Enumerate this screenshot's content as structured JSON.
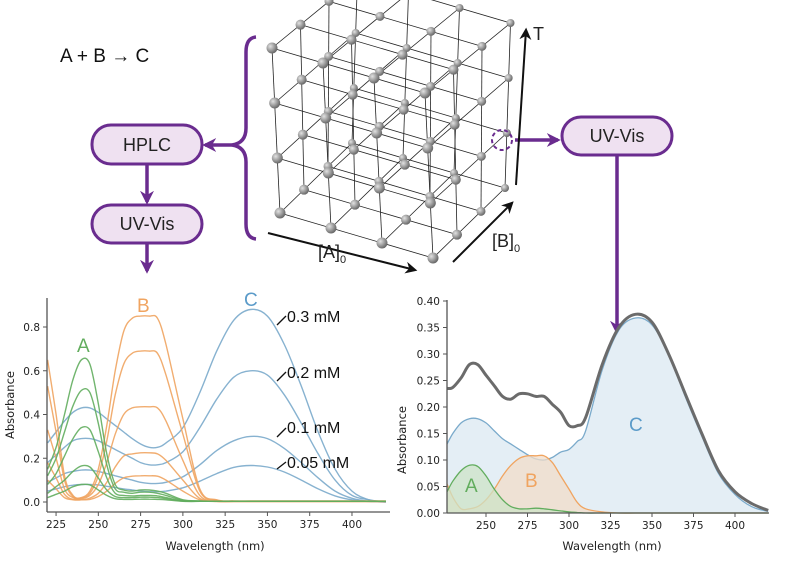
{
  "reaction": "A + B → C",
  "flow": {
    "hplc_label": "HPLC",
    "uvvis_left_label": "UV-Vis",
    "uvvis_right_label": "UV-Vis",
    "accent_color": "#6a2c8f"
  },
  "cube": {
    "axis_a_label": "[A]",
    "axis_a_sub": "0",
    "axis_b_label": "[B]",
    "axis_b_sub": "0",
    "axis_t_label": "T"
  },
  "colors": {
    "A": "#62ad5e",
    "B": "#f0a460",
    "C": "#7aaacb",
    "C_text": "#5b9bc9",
    "total": "#6b6b6b"
  },
  "chart_data": [
    {
      "type": "line",
      "xlabel": "Wavelength (nm)",
      "ylabel": "Absorbance",
      "xlim": [
        220,
        420
      ],
      "ylim": [
        -0.045,
        0.93
      ],
      "xticks": [
        225,
        250,
        275,
        300,
        325,
        350,
        375,
        400
      ],
      "yticks": [
        "0.0",
        "0.2",
        "0.4",
        "0.6",
        "0.8"
      ],
      "grid": false,
      "annotations": {
        "A": "A",
        "B": "B",
        "C": "C",
        "c1": "0.3 mM",
        "c2": "0.2 mM",
        "c3": "0.1 mM",
        "c4": "0.05 mM"
      },
      "x": [
        220,
        225,
        230,
        235,
        240,
        245,
        250,
        255,
        260,
        265,
        270,
        275,
        280,
        285,
        290,
        300,
        310,
        320,
        330,
        340,
        350,
        360,
        370,
        380,
        390,
        400,
        410,
        420
      ],
      "series": [
        {
          "group": "A",
          "values": [
            0.15,
            0.25,
            0.4,
            0.56,
            0.65,
            0.63,
            0.45,
            0.22,
            0.08,
            0.055,
            0.05,
            0.055,
            0.055,
            0.05,
            0.04,
            0.01,
            0.005,
            0.003,
            0.003,
            0.003,
            0.003,
            0.003,
            0.003,
            0.003,
            0.003,
            0.003,
            0.003,
            0.003
          ]
        },
        {
          "group": "A",
          "values": [
            0.12,
            0.2,
            0.32,
            0.44,
            0.51,
            0.5,
            0.36,
            0.17,
            0.06,
            0.045,
            0.04,
            0.045,
            0.045,
            0.04,
            0.03,
            0.008,
            0.004,
            0.003,
            0.003,
            0.003,
            0.003,
            0.003,
            0.003,
            0.003,
            0.003,
            0.003,
            0.003,
            0.003
          ]
        },
        {
          "group": "A",
          "values": [
            0.08,
            0.13,
            0.21,
            0.29,
            0.34,
            0.33,
            0.23,
            0.11,
            0.04,
            0.03,
            0.028,
            0.03,
            0.03,
            0.028,
            0.02,
            0.005,
            0.003,
            0.003,
            0.003,
            0.003,
            0.003,
            0.003,
            0.003,
            0.003,
            0.003,
            0.003,
            0.003,
            0.003
          ]
        },
        {
          "group": "A",
          "values": [
            0.04,
            0.07,
            0.1,
            0.14,
            0.165,
            0.16,
            0.11,
            0.055,
            0.025,
            0.02,
            0.02,
            0.022,
            0.022,
            0.02,
            0.015,
            0.004,
            0.003,
            0.003,
            0.003,
            0.003,
            0.003,
            0.003,
            0.003,
            0.003,
            0.003,
            0.003,
            0.003,
            0.003
          ]
        },
        {
          "group": "A",
          "values": [
            0.02,
            0.035,
            0.05,
            0.07,
            0.08,
            0.078,
            0.055,
            0.03,
            0.015,
            0.012,
            0.012,
            0.013,
            0.013,
            0.012,
            0.01,
            0.003,
            0.003,
            0.003,
            0.003,
            0.003,
            0.003,
            0.003,
            0.003,
            0.003,
            0.003,
            0.003,
            0.003,
            0.003
          ]
        },
        {
          "group": "B",
          "values": [
            0.65,
            0.4,
            0.12,
            0.03,
            0.02,
            0.05,
            0.15,
            0.35,
            0.6,
            0.78,
            0.84,
            0.85,
            0.85,
            0.84,
            0.72,
            0.38,
            0.06,
            0.01,
            0.005,
            0.005,
            0.005,
            0.005,
            0.005,
            0.005,
            0.005,
            0.005,
            0.005,
            0.005
          ]
        },
        {
          "group": "B",
          "values": [
            0.53,
            0.32,
            0.1,
            0.025,
            0.018,
            0.04,
            0.12,
            0.28,
            0.49,
            0.63,
            0.68,
            0.69,
            0.69,
            0.68,
            0.58,
            0.31,
            0.05,
            0.008,
            0.004,
            0.004,
            0.004,
            0.004,
            0.004,
            0.004,
            0.004,
            0.004,
            0.004,
            0.004
          ]
        },
        {
          "group": "B",
          "values": [
            0.33,
            0.2,
            0.06,
            0.02,
            0.015,
            0.03,
            0.08,
            0.18,
            0.31,
            0.4,
            0.43,
            0.435,
            0.435,
            0.43,
            0.37,
            0.19,
            0.03,
            0.005,
            0.003,
            0.003,
            0.003,
            0.003,
            0.003,
            0.003,
            0.003,
            0.003,
            0.003,
            0.003
          ]
        },
        {
          "group": "B",
          "values": [
            0.18,
            0.11,
            0.035,
            0.012,
            0.01,
            0.018,
            0.04,
            0.09,
            0.16,
            0.21,
            0.22,
            0.225,
            0.225,
            0.22,
            0.19,
            0.1,
            0.016,
            0.003,
            0.002,
            0.002,
            0.002,
            0.002,
            0.002,
            0.002,
            0.002,
            0.002,
            0.002,
            0.002
          ]
        },
        {
          "group": "B",
          "values": [
            0.1,
            0.06,
            0.02,
            0.01,
            0.01,
            0.012,
            0.025,
            0.05,
            0.085,
            0.11,
            0.118,
            0.12,
            0.12,
            0.118,
            0.1,
            0.05,
            0.01,
            0.002,
            0.002,
            0.002,
            0.002,
            0.002,
            0.002,
            0.002,
            0.002,
            0.002,
            0.002,
            0.002
          ]
        },
        {
          "group": "C",
          "name": "0.3 mM",
          "values": [
            0.27,
            0.32,
            0.37,
            0.41,
            0.43,
            0.43,
            0.41,
            0.38,
            0.35,
            0.32,
            0.29,
            0.265,
            0.25,
            0.25,
            0.27,
            0.34,
            0.5,
            0.69,
            0.83,
            0.88,
            0.85,
            0.72,
            0.53,
            0.32,
            0.15,
            0.05,
            0.01,
            0.0
          ]
        },
        {
          "group": "C",
          "name": "0.2 mM",
          "values": [
            0.18,
            0.215,
            0.25,
            0.28,
            0.29,
            0.29,
            0.28,
            0.26,
            0.24,
            0.22,
            0.2,
            0.18,
            0.17,
            0.17,
            0.18,
            0.23,
            0.34,
            0.47,
            0.57,
            0.6,
            0.58,
            0.49,
            0.36,
            0.22,
            0.1,
            0.03,
            0.01,
            0.0
          ]
        },
        {
          "group": "C",
          "name": "0.1 mM",
          "values": [
            0.09,
            0.11,
            0.13,
            0.14,
            0.146,
            0.146,
            0.14,
            0.13,
            0.12,
            0.11,
            0.1,
            0.09,
            0.085,
            0.085,
            0.09,
            0.115,
            0.17,
            0.235,
            0.28,
            0.3,
            0.29,
            0.245,
            0.18,
            0.11,
            0.05,
            0.017,
            0.003,
            0.0
          ]
        },
        {
          "group": "C",
          "name": "0.05 mM",
          "values": [
            0.05,
            0.06,
            0.07,
            0.077,
            0.08,
            0.08,
            0.078,
            0.072,
            0.066,
            0.06,
            0.055,
            0.05,
            0.047,
            0.047,
            0.05,
            0.065,
            0.095,
            0.13,
            0.158,
            0.167,
            0.16,
            0.137,
            0.1,
            0.06,
            0.028,
            0.01,
            0.002,
            0.0
          ]
        }
      ]
    },
    {
      "type": "area",
      "xlabel": "Wavelength (nm)",
      "ylabel": "Absorbance",
      "xlim": [
        226.5,
        420
      ],
      "ylim": [
        0,
        0.4
      ],
      "xticks": [
        250,
        275,
        300,
        325,
        350,
        375,
        400
      ],
      "yticks": [
        "0.00",
        "0.05",
        "0.10",
        "0.15",
        "0.20",
        "0.25",
        "0.30",
        "0.35",
        "0.40"
      ],
      "grid": false,
      "annotations": {
        "A": "A",
        "B": "B",
        "C": "C"
      },
      "x": [
        226,
        230,
        235,
        240,
        245,
        250,
        255,
        260,
        265,
        270,
        275,
        280,
        285,
        290,
        295,
        300,
        305,
        310,
        320,
        330,
        340,
        350,
        360,
        370,
        380,
        390,
        400,
        410,
        420
      ],
      "series": [
        {
          "group": "C",
          "fill": true,
          "values": [
            0.13,
            0.15,
            0.17,
            0.178,
            0.178,
            0.17,
            0.155,
            0.14,
            0.13,
            0.12,
            0.11,
            0.102,
            0.1,
            0.105,
            0.115,
            0.12,
            0.135,
            0.155,
            0.27,
            0.345,
            0.368,
            0.355,
            0.3,
            0.22,
            0.145,
            0.075,
            0.035,
            0.012,
            0.003
          ]
        },
        {
          "group": "B",
          "fill": true,
          "values": [
            0.055,
            0.03,
            0.008,
            0.008,
            0.012,
            0.025,
            0.045,
            0.07,
            0.09,
            0.103,
            0.108,
            0.108,
            0.108,
            0.095,
            0.07,
            0.045,
            0.02,
            0.008,
            0.002,
            0,
            0,
            0,
            0,
            0,
            0,
            0,
            0,
            0,
            0
          ]
        },
        {
          "group": "A",
          "fill": true,
          "values": [
            0.04,
            0.06,
            0.08,
            0.09,
            0.088,
            0.07,
            0.045,
            0.025,
            0.012,
            0.008,
            0.008,
            0.009,
            0.008,
            0.006,
            0.004,
            0.002,
            0.001,
            0,
            0,
            0,
            0,
            0,
            0,
            0,
            0,
            0,
            0,
            0,
            0
          ]
        },
        {
          "group": "total",
          "fill": false,
          "values": [
            0.235,
            0.237,
            0.255,
            0.28,
            0.28,
            0.26,
            0.24,
            0.22,
            0.215,
            0.225,
            0.225,
            0.22,
            0.22,
            0.205,
            0.19,
            0.165,
            0.165,
            0.18,
            0.28,
            0.35,
            0.375,
            0.36,
            0.3,
            0.225,
            0.15,
            0.08,
            0.04,
            0.018,
            0.005
          ]
        }
      ]
    }
  ]
}
